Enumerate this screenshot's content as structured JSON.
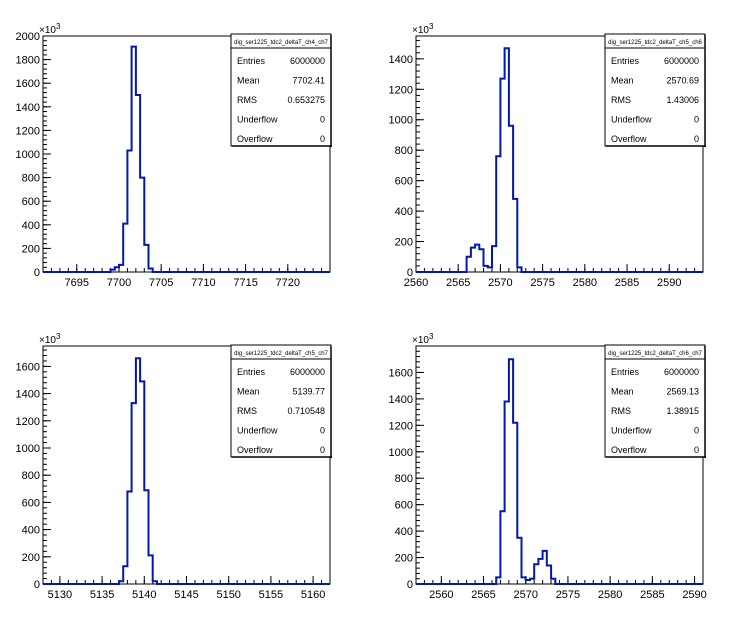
{
  "chart_data": [
    {
      "type": "histogram",
      "stats_title": "dig_ser1225_tdc2_deltaT_ch4_ch7",
      "exponent_label": "×10",
      "exponent_power": "3",
      "xlim": [
        7691,
        7725
      ],
      "ylim": [
        0,
        2000
      ],
      "xticks": [
        7695,
        7700,
        7705,
        7710,
        7715,
        7720
      ],
      "yticks": [
        0,
        200,
        400,
        600,
        800,
        1000,
        1200,
        1400,
        1600,
        1800,
        2000
      ],
      "y_minor_step": 40,
      "x_minor_step": 1,
      "bins": [
        {
          "x0": 7699.0,
          "x1": 7699.5,
          "y": 20
        },
        {
          "x0": 7699.5,
          "x1": 7700.0,
          "y": 40
        },
        {
          "x0": 7700.0,
          "x1": 7700.5,
          "y": 60
        },
        {
          "x0": 7700.5,
          "x1": 7701.0,
          "y": 410
        },
        {
          "x0": 7701.0,
          "x1": 7701.5,
          "y": 1030
        },
        {
          "x0": 7701.5,
          "x1": 7702.0,
          "y": 1910
        },
        {
          "x0": 7702.0,
          "x1": 7702.5,
          "y": 1500
        },
        {
          "x0": 7702.5,
          "x1": 7703.0,
          "y": 800
        },
        {
          "x0": 7703.0,
          "x1": 7703.5,
          "y": 230
        },
        {
          "x0": 7703.5,
          "x1": 7704.0,
          "y": 30
        }
      ],
      "stats": [
        {
          "label": "Entries",
          "value": "6000000"
        },
        {
          "label": "Mean",
          "value": "7702.41"
        },
        {
          "label": "RMS",
          "value": "0.653275"
        },
        {
          "label": "Underflow",
          "value": "0"
        },
        {
          "label": "Overflow",
          "value": "0"
        }
      ]
    },
    {
      "type": "histogram",
      "stats_title": "dig_ser1225_tdc2_deltaT_ch5_ch6",
      "exponent_label": "×10",
      "exponent_power": "3",
      "xlim": [
        2560,
        2594
      ],
      "ylim": [
        0,
        1550
      ],
      "xticks": [
        2560,
        2565,
        2570,
        2575,
        2580,
        2585,
        2590
      ],
      "yticks": [
        0,
        200,
        400,
        600,
        800,
        1000,
        1200,
        1400
      ],
      "y_minor_step": 40,
      "x_minor_step": 1,
      "bins": [
        {
          "x0": 2566.0,
          "x1": 2566.5,
          "y": 100
        },
        {
          "x0": 2566.5,
          "x1": 2567.0,
          "y": 160
        },
        {
          "x0": 2567.0,
          "x1": 2567.5,
          "y": 180
        },
        {
          "x0": 2567.5,
          "x1": 2568.0,
          "y": 150
        },
        {
          "x0": 2568.0,
          "x1": 2568.5,
          "y": 40
        },
        {
          "x0": 2568.5,
          "x1": 2569.0,
          "y": 30
        },
        {
          "x0": 2569.0,
          "x1": 2569.5,
          "y": 170
        },
        {
          "x0": 2569.5,
          "x1": 2570.0,
          "y": 760
        },
        {
          "x0": 2570.0,
          "x1": 2570.5,
          "y": 1270
        },
        {
          "x0": 2570.5,
          "x1": 2571.0,
          "y": 1470
        },
        {
          "x0": 2571.0,
          "x1": 2571.5,
          "y": 960
        },
        {
          "x0": 2571.5,
          "x1": 2572.0,
          "y": 480
        },
        {
          "x0": 2572.0,
          "x1": 2572.5,
          "y": 30
        }
      ],
      "stats": [
        {
          "label": "Entries",
          "value": "6000000"
        },
        {
          "label": "Mean",
          "value": "2570.69"
        },
        {
          "label": "RMS",
          "value": "1.43006"
        },
        {
          "label": "Underflow",
          "value": "0"
        },
        {
          "label": "Overflow",
          "value": "0"
        }
      ]
    },
    {
      "type": "histogram",
      "stats_title": "dig_ser1225_tdc2_deltaT_ch5_ch7",
      "exponent_label": "×10",
      "exponent_power": "3",
      "xlim": [
        5128,
        5162
      ],
      "ylim": [
        0,
        1750
      ],
      "xticks": [
        5130,
        5135,
        5140,
        5145,
        5150,
        5155,
        5160
      ],
      "yticks": [
        0,
        200,
        400,
        600,
        800,
        1000,
        1200,
        1400,
        1600
      ],
      "y_minor_step": 40,
      "x_minor_step": 1,
      "bins": [
        {
          "x0": 5137.0,
          "x1": 5137.5,
          "y": 20
        },
        {
          "x0": 5137.5,
          "x1": 5138.0,
          "y": 130
        },
        {
          "x0": 5138.0,
          "x1": 5138.5,
          "y": 680
        },
        {
          "x0": 5138.5,
          "x1": 5139.0,
          "y": 1330
        },
        {
          "x0": 5139.0,
          "x1": 5139.5,
          "y": 1660
        },
        {
          "x0": 5139.5,
          "x1": 5140.0,
          "y": 1490
        },
        {
          "x0": 5140.0,
          "x1": 5140.5,
          "y": 690
        },
        {
          "x0": 5140.5,
          "x1": 5141.0,
          "y": 210
        },
        {
          "x0": 5141.0,
          "x1": 5141.5,
          "y": 20
        }
      ],
      "stats": [
        {
          "label": "Entries",
          "value": "6000000"
        },
        {
          "label": "Mean",
          "value": "5139.77"
        },
        {
          "label": "RMS",
          "value": "0.710548"
        },
        {
          "label": "Underflow",
          "value": "0"
        },
        {
          "label": "Overflow",
          "value": "0"
        }
      ]
    },
    {
      "type": "histogram",
      "stats_title": "dig_ser1225_tdc2_deltaT_ch6_ch7",
      "exponent_label": "×10",
      "exponent_power": "3",
      "xlim": [
        2557,
        2591
      ],
      "ylim": [
        0,
        1800
      ],
      "xticks": [
        2560,
        2565,
        2570,
        2575,
        2580,
        2585,
        2590
      ],
      "yticks": [
        0,
        200,
        400,
        600,
        800,
        1000,
        1200,
        1400,
        1600
      ],
      "y_minor_step": 40,
      "x_minor_step": 1,
      "bins": [
        {
          "x0": 2566.5,
          "x1": 2567.0,
          "y": 50
        },
        {
          "x0": 2567.0,
          "x1": 2567.5,
          "y": 550
        },
        {
          "x0": 2567.5,
          "x1": 2568.0,
          "y": 1380
        },
        {
          "x0": 2568.0,
          "x1": 2568.5,
          "y": 1700
        },
        {
          "x0": 2568.5,
          "x1": 2569.0,
          "y": 1220
        },
        {
          "x0": 2569.0,
          "x1": 2569.5,
          "y": 350
        },
        {
          "x0": 2569.5,
          "x1": 2570.0,
          "y": 50
        },
        {
          "x0": 2570.0,
          "x1": 2570.5,
          "y": 30
        },
        {
          "x0": 2570.5,
          "x1": 2571.0,
          "y": 40
        },
        {
          "x0": 2571.0,
          "x1": 2571.5,
          "y": 150
        },
        {
          "x0": 2571.5,
          "x1": 2572.0,
          "y": 190
        },
        {
          "x0": 2572.0,
          "x1": 2572.5,
          "y": 250
        },
        {
          "x0": 2572.5,
          "x1": 2573.0,
          "y": 140
        },
        {
          "x0": 2573.0,
          "x1": 2573.5,
          "y": 40
        }
      ],
      "stats": [
        {
          "label": "Entries",
          "value": "6000000"
        },
        {
          "label": "Mean",
          "value": "2569.13"
        },
        {
          "label": "RMS",
          "value": "1.38915"
        },
        {
          "label": "Underflow",
          "value": "0"
        },
        {
          "label": "Overflow",
          "value": "0"
        }
      ]
    }
  ],
  "colors": {
    "line": "#0018ad",
    "axis": "#000000",
    "background": "#ffffff"
  }
}
